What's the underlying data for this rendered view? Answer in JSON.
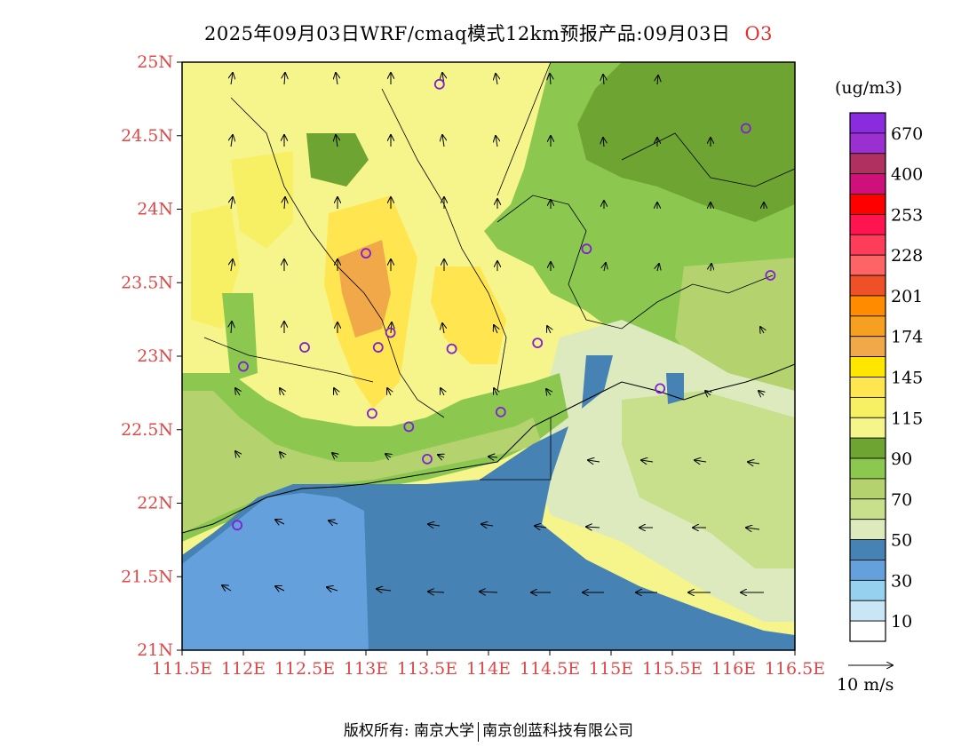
{
  "title": "2025年09月03日WRF/cmaq模式12km预报产品:09月03日",
  "species": "O3",
  "unit": "(ug/m3)",
  "wind_ref_label": "10 m/s",
  "footer": {
    "copyright": "版权所有: 南京大学",
    "company": "南京创蓝科技有限公司"
  },
  "lat_labels": [
    "25N",
    "24.5N",
    "24N",
    "23.5N",
    "23N",
    "22.5N",
    "22N",
    "21.5N",
    "21N"
  ],
  "lon_labels": [
    "111.5E",
    "112E",
    "112.5E",
    "113E",
    "113.5E",
    "114E",
    "114.5E",
    "115E",
    "115.5E",
    "116E",
    "116.5E"
  ],
  "colorbar": {
    "colors": [
      "#8b2be0",
      "#9b30d0",
      "#b03060",
      "#d0107a",
      "#ff0000",
      "#ff1450",
      "#ff3c5a",
      "#ff6464",
      "#f05028",
      "#ff8c00",
      "#f5a020",
      "#f0a848",
      "#ffe600",
      "#ffe650",
      "#f8f064",
      "#f5f58c",
      "#6ea532",
      "#8cc850",
      "#b4d26e",
      "#c8e08c",
      "#dceabe",
      "#4682b4",
      "#64a0dc",
      "#96d2f0",
      "#c8e6f5",
      "#ffffff"
    ],
    "labels": [
      "670",
      "400",
      "253",
      "228",
      "201",
      "174",
      "145",
      "115",
      "90",
      "70",
      "50",
      "30",
      "10"
    ]
  },
  "monitoring_sites": [
    {
      "lon": 113.6,
      "lat": 24.85
    },
    {
      "lon": 116.1,
      "lat": 24.55
    },
    {
      "lon": 114.8,
      "lat": 23.73
    },
    {
      "lon": 116.3,
      "lat": 23.55
    },
    {
      "lon": 113.0,
      "lat": 23.7
    },
    {
      "lon": 113.2,
      "lat": 23.16
    },
    {
      "lon": 113.1,
      "lat": 23.06
    },
    {
      "lon": 113.7,
      "lat": 23.05
    },
    {
      "lon": 112.5,
      "lat": 23.06
    },
    {
      "lon": 112.0,
      "lat": 22.93
    },
    {
      "lon": 114.4,
      "lat": 23.09
    },
    {
      "lon": 115.4,
      "lat": 22.78
    },
    {
      "lon": 114.1,
      "lat": 22.62
    },
    {
      "lon": 113.05,
      "lat": 22.61
    },
    {
      "lon": 113.35,
      "lat": 22.52
    },
    {
      "lon": 113.5,
      "lat": 22.3
    },
    {
      "lon": 111.95,
      "lat": 21.85
    }
  ],
  "colors": {
    "axis": "#e04848",
    "site_marker": "#8020d0"
  }
}
